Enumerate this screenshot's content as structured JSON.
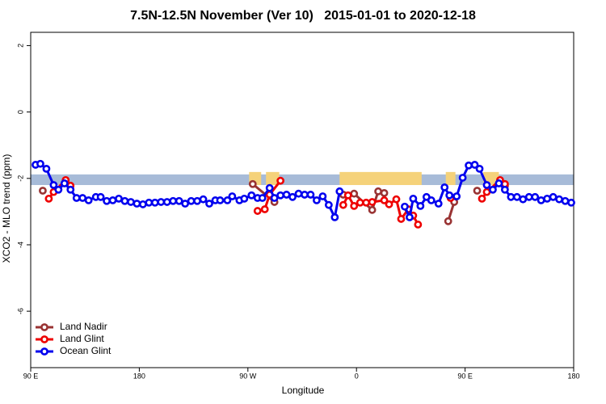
{
  "chart_data": {
    "type": "line",
    "title": "7.5N-12.5N November (Ver 10)   2015-01-01 to 2020-12-18",
    "x_label": "Longitude",
    "y_label": "XCO2 - MLO trend (ppm)",
    "xlim": [
      90,
      540
    ],
    "ylim": [
      -7.7,
      2.4
    ],
    "xticks": [
      {
        "value": 90,
        "label": "90 E"
      },
      180,
      {
        "value": 270,
        "label": "90 W"
      },
      {
        "value": 360,
        "label": "0"
      },
      {
        "value": 450,
        "label": "90 E"
      },
      {
        "value": 540,
        "label": "180"
      }
    ],
    "yticks": [
      2,
      0,
      -2,
      -4,
      -6
    ],
    "legend": "bottom-left",
    "reference_band": {
      "ylim": [
        -2.2,
        -1.88
      ],
      "color": "#a7bbd8"
    },
    "land_ranges": {
      "color": "#f5d27a",
      "ranges": [
        [
          271,
          281
        ],
        [
          285,
          296
        ],
        [
          346,
          414
        ],
        [
          434,
          442
        ],
        [
          465,
          478
        ]
      ]
    },
    "series": [
      {
        "name": "Land Nadir",
        "color": "#993333",
        "x": [
          100,
          null,
          274,
          292,
          null,
          349,
          358,
          373,
          378,
          383,
          null,
          436,
          441,
          null,
          460,
          null,
          483
        ],
        "values": [
          -2.37,
          null,
          -2.17,
          -2.71,
          null,
          -2.49,
          -2.46,
          -2.95,
          -2.39,
          -2.44,
          null,
          -3.29,
          -2.71,
          null,
          -2.37,
          null,
          -2.22
        ]
      },
      {
        "name": "Land Glint",
        "color": "#ee0000",
        "x": [
          105,
          109,
          119,
          123,
          null,
          278,
          284,
          288,
          297,
          null,
          349,
          353,
          358,
          363,
          368,
          373,
          383,
          387,
          393,
          397,
          403,
          407,
          411,
          null,
          438,
          null,
          464,
          468,
          479,
          483
        ],
        "values": [
          -2.61,
          -2.41,
          -2.05,
          -2.22,
          null,
          -2.98,
          -2.93,
          -2.49,
          -2.07,
          null,
          -2.8,
          -2.51,
          -2.83,
          -2.73,
          -2.73,
          -2.71,
          -2.66,
          -2.78,
          -2.63,
          -3.22,
          -2.93,
          -3.12,
          -3.39,
          null,
          -2.59,
          null,
          -2.61,
          -2.41,
          -2.05,
          -2.17
        ]
      },
      {
        "name": "Ocean Glint",
        "color": "#0000ee",
        "x": [
          94,
          98,
          103,
          109,
          113,
          118,
          123,
          128,
          133,
          138,
          144,
          148,
          153,
          158,
          163,
          168,
          173,
          178,
          183,
          188,
          193,
          198,
          203,
          208,
          213,
          218,
          223,
          228,
          233,
          238,
          243,
          247,
          253,
          257,
          263,
          267,
          273,
          278,
          282,
          288,
          292,
          297,
          302,
          307,
          312,
          317,
          322,
          327,
          332,
          337,
          342,
          346,
          null,
          400,
          404,
          407,
          413,
          418,
          422,
          428,
          433,
          437,
          443,
          448,
          453,
          458,
          462,
          468,
          473,
          478,
          483,
          488,
          493,
          498,
          503,
          508,
          513,
          518,
          523,
          528,
          533,
          538
        ],
        "values": [
          -1.59,
          -1.56,
          -1.71,
          -2.2,
          -2.34,
          -2.15,
          -2.34,
          -2.59,
          -2.59,
          -2.66,
          -2.56,
          -2.56,
          -2.68,
          -2.66,
          -2.61,
          -2.68,
          -2.71,
          -2.76,
          -2.78,
          -2.73,
          -2.73,
          -2.71,
          -2.71,
          -2.68,
          -2.68,
          -2.76,
          -2.68,
          -2.68,
          -2.63,
          -2.76,
          -2.66,
          -2.66,
          -2.66,
          -2.54,
          -2.66,
          -2.61,
          -2.51,
          -2.59,
          -2.59,
          -2.29,
          -2.59,
          -2.51,
          -2.49,
          -2.56,
          -2.46,
          -2.49,
          -2.49,
          -2.66,
          -2.54,
          -2.8,
          -3.17,
          -2.39,
          null,
          -2.85,
          -3.17,
          -2.61,
          -2.83,
          -2.56,
          -2.66,
          -2.76,
          -2.27,
          -2.51,
          -2.54,
          -1.98,
          -1.61,
          -1.59,
          -1.71,
          -2.2,
          -2.34,
          -2.15,
          -2.34,
          -2.56,
          -2.56,
          -2.63,
          -2.56,
          -2.56,
          -2.66,
          -2.61,
          -2.56,
          -2.63,
          -2.68,
          -2.73
        ]
      }
    ]
  }
}
